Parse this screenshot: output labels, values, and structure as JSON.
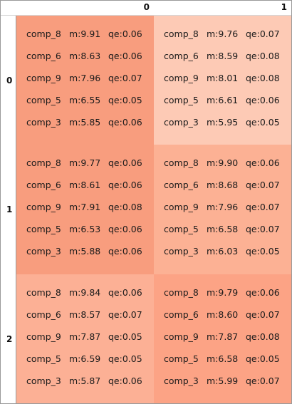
{
  "columns": [
    "0",
    "1"
  ],
  "rows": [
    "0",
    "1",
    "2"
  ],
  "cells": [
    [
      {
        "color": "#f89d7e",
        "entries": [
          {
            "comp": "comp_8",
            "m": "m:9.91",
            "qe": "qe:0.06"
          },
          {
            "comp": "comp_6",
            "m": "m:8.63",
            "qe": "qe:0.06"
          },
          {
            "comp": "comp_9",
            "m": "m:7.96",
            "qe": "qe:0.07"
          },
          {
            "comp": "comp_5",
            "m": "m:6.55",
            "qe": "qe:0.05"
          },
          {
            "comp": "comp_3",
            "m": "m:5.85",
            "qe": "qe:0.06"
          }
        ]
      },
      {
        "color": "#fdcab5",
        "entries": [
          {
            "comp": "comp_8",
            "m": "m:9.76",
            "qe": "qe:0.07"
          },
          {
            "comp": "comp_6",
            "m": "m:8.59",
            "qe": "qe:0.08"
          },
          {
            "comp": "comp_9",
            "m": "m:8.01",
            "qe": "qe:0.08"
          },
          {
            "comp": "comp_5",
            "m": "m:6.61",
            "qe": "qe:0.06"
          },
          {
            "comp": "comp_3",
            "m": "m:5.95",
            "qe": "qe:0.05"
          }
        ]
      }
    ],
    [
      {
        "color": "#f89d7e",
        "entries": [
          {
            "comp": "comp_8",
            "m": "m:9.77",
            "qe": "qe:0.06"
          },
          {
            "comp": "comp_6",
            "m": "m:8.61",
            "qe": "qe:0.06"
          },
          {
            "comp": "comp_9",
            "m": "m:7.91",
            "qe": "qe:0.08"
          },
          {
            "comp": "comp_5",
            "m": "m:6.53",
            "qe": "qe:0.06"
          },
          {
            "comp": "comp_3",
            "m": "m:5.88",
            "qe": "qe:0.06"
          }
        ]
      },
      {
        "color": "#fcb194",
        "entries": [
          {
            "comp": "comp_8",
            "m": "m:9.90",
            "qe": "qe:0.06"
          },
          {
            "comp": "comp_6",
            "m": "m:8.68",
            "qe": "qe:0.07"
          },
          {
            "comp": "comp_9",
            "m": "m:7.96",
            "qe": "qe:0.07"
          },
          {
            "comp": "comp_5",
            "m": "m:6.58",
            "qe": "qe:0.07"
          },
          {
            "comp": "comp_3",
            "m": "m:6.03",
            "qe": "qe:0.05"
          }
        ]
      }
    ],
    [
      {
        "color": "#fcb095",
        "entries": [
          {
            "comp": "comp_8",
            "m": "m:9.84",
            "qe": "qe:0.06"
          },
          {
            "comp": "comp_6",
            "m": "m:8.57",
            "qe": "qe:0.07"
          },
          {
            "comp": "comp_9",
            "m": "m:7.87",
            "qe": "qe:0.05"
          },
          {
            "comp": "comp_5",
            "m": "m:6.59",
            "qe": "qe:0.05"
          },
          {
            "comp": "comp_3",
            "m": "m:5.87",
            "qe": "qe:0.06"
          }
        ]
      },
      {
        "color": "#fca385",
        "entries": [
          {
            "comp": "comp_8",
            "m": "m:9.79",
            "qe": "qe:0.06"
          },
          {
            "comp": "comp_6",
            "m": "m:8.60",
            "qe": "qe:0.07"
          },
          {
            "comp": "comp_9",
            "m": "m:7.87",
            "qe": "qe:0.08"
          },
          {
            "comp": "comp_5",
            "m": "m:6.58",
            "qe": "qe:0.05"
          },
          {
            "comp": "comp_3",
            "m": "m:5.99",
            "qe": "qe:0.07"
          }
        ]
      }
    ]
  ]
}
